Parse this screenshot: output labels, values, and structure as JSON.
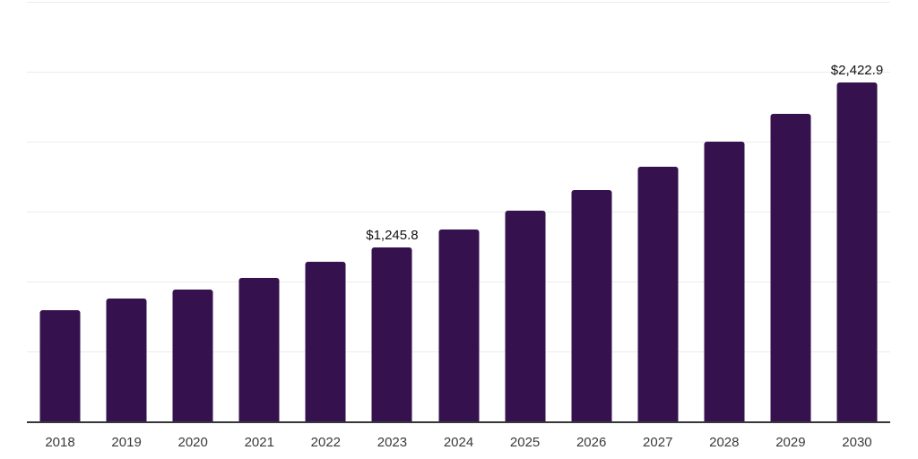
{
  "chart_data": {
    "type": "bar",
    "title": "",
    "categories": [
      "2018",
      "2019",
      "2020",
      "2021",
      "2022",
      "2023",
      "2024",
      "2025",
      "2026",
      "2027",
      "2028",
      "2029",
      "2030"
    ],
    "values": [
      795,
      880,
      940,
      1026,
      1143,
      1245.8,
      1372,
      1506,
      1656,
      1820,
      2002,
      2201,
      2422.9
    ],
    "data_labels": {
      "2023": "$1,245.8",
      "2030": "$2,422.9"
    },
    "xlabel": "",
    "ylabel": "",
    "ylim": [
      0,
      3000
    ],
    "gridline_step": 500,
    "grid": true,
    "legend_position": "none",
    "bar_color": "#35124E",
    "axis_color": "#37373B",
    "gridline_color": "#ECECEC",
    "tick_label_color": "#3A3A3A",
    "data_label_color": "#111111",
    "background_color": "#FFFFFF"
  }
}
